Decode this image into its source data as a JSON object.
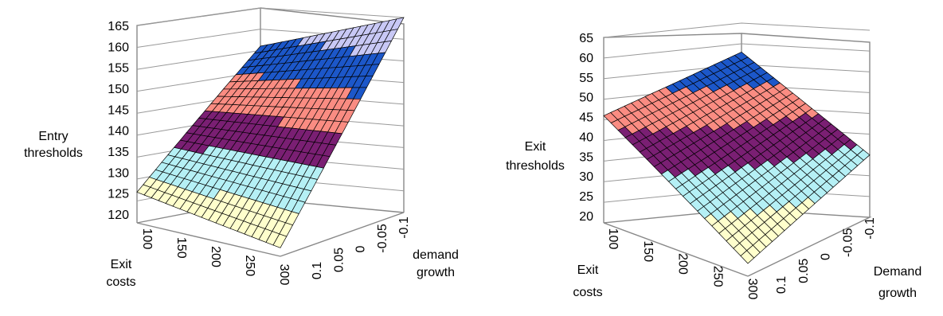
{
  "chart_data": [
    {
      "type": "surface3d",
      "zlabel": [
        "Entry",
        "thresholds"
      ],
      "xlabel": [
        "Exit",
        "costs"
      ],
      "ylabel": [
        "demand",
        "growth"
      ],
      "z_ticks": [
        "120",
        "125",
        "130",
        "135",
        "140",
        "145",
        "150",
        "155",
        "160",
        "165"
      ],
      "zlim": [
        120,
        165
      ],
      "x_ticks": [
        "100",
        "150",
        "200",
        "250",
        "300"
      ],
      "y_ticks": [
        "0.1",
        "0.05",
        "0",
        "-0.05",
        "-0.1"
      ],
      "corner_values": {
        "exit100_growth0.1": 127,
        "exit300_growth0.1": 122,
        "exit100_growth-0.1": 156,
        "exit300_growth-0.1": 165
      },
      "band_colors": [
        "#ffffcc",
        "#b5f0f5",
        "#7a1f73",
        "#fa8c82",
        "#1c57c9",
        "#c8c8f5"
      ]
    },
    {
      "type": "surface3d",
      "zlabel": [
        "Exit",
        "thresholds"
      ],
      "xlabel": [
        "Exit",
        "costs"
      ],
      "ylabel": [
        "Demand",
        "growth"
      ],
      "z_ticks": [
        "20",
        "25",
        "30",
        "35",
        "40",
        "45",
        "50",
        "55",
        "60",
        "65"
      ],
      "zlim": [
        20,
        65
      ],
      "x_ticks": [
        "100",
        "150",
        "200",
        "250",
        "300"
      ],
      "y_ticks": [
        "0.1",
        "0.05",
        "0",
        "-0.05",
        "-0.1"
      ],
      "corner_values": {
        "exit100_growth0.1": 46,
        "exit300_growth0.1": 23,
        "exit100_growth-0.1": 58,
        "exit300_growth-0.1": 35
      },
      "band_colors": [
        "#ffffcc",
        "#b5f0f5",
        "#7a1f73",
        "#fa8c82",
        "#1c57c9"
      ]
    }
  ]
}
